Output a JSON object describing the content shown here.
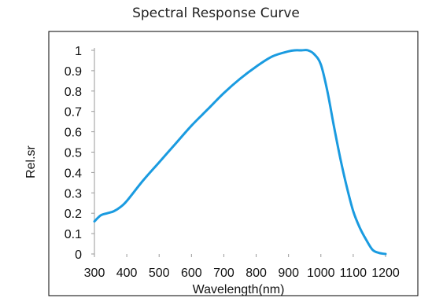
{
  "chart_data": {
    "type": "line",
    "title": "Spectral Response Curve",
    "xlabel": "Wavelength(nm)",
    "ylabel": "Rel.sr",
    "xlim": [
      300,
      1200
    ],
    "ylim": [
      0,
      1
    ],
    "x_ticks": [
      "300",
      "400",
      "500",
      "600",
      "700",
      "800",
      "900",
      "1000",
      "1100",
      "1200"
    ],
    "y_ticks": [
      "0",
      "0.1",
      "0.2",
      "0.3",
      "0.4",
      "0.5",
      "0.6",
      "0.7",
      "0.8",
      "0.9",
      "1"
    ],
    "grid": false,
    "colors": {
      "line": "#1a9be0",
      "frame": "#000000",
      "axis": "#9a9a9a"
    },
    "series": [
      {
        "x": [
          300,
          320,
          340,
          360,
          380,
          400,
          450,
          500,
          550,
          600,
          650,
          700,
          750,
          800,
          850,
          900,
          920,
          940,
          960,
          980,
          1000,
          1020,
          1040,
          1060,
          1080,
          1100,
          1120,
          1140,
          1160,
          1180,
          1200
        ],
        "y": [
          0.16,
          0.19,
          0.2,
          0.21,
          0.23,
          0.26,
          0.36,
          0.45,
          0.54,
          0.63,
          0.71,
          0.79,
          0.86,
          0.92,
          0.97,
          0.995,
          1.0,
          1.0,
          1.0,
          0.98,
          0.93,
          0.8,
          0.63,
          0.47,
          0.33,
          0.21,
          0.13,
          0.07,
          0.02,
          0.005,
          0.0
        ]
      }
    ]
  }
}
